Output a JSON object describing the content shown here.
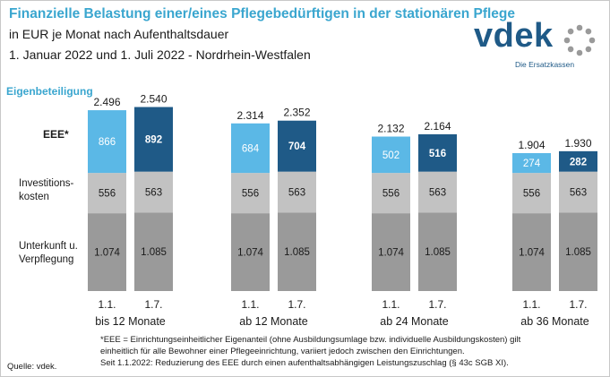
{
  "header": {
    "title": "Finanzielle Belastung einer/eines Pflegebedürftigen in der stationären Pflege",
    "subtitle_1": "in EUR je Monat nach Aufenthaltsdauer",
    "subtitle_2": "1. Januar 2022 und 1. Juli 2022 - Nordrhein-Westfalen"
  },
  "logo": {
    "word": "vdek",
    "tagline": "Die Ersatzkassen"
  },
  "row_labels": {
    "eigenbeteiligung": "Eigenbeteiligung",
    "eee": "EEE*",
    "investition_1": "Investitions-",
    "investition_2": "kosten",
    "unterkunft_1": "Unterkunft u.",
    "unterkunft_2": "Verpflegung"
  },
  "footnote": {
    "line1": "*EEE = Einrichtungseinheitlicher  Eigenanteil (ohne Ausbildungsumlage bzw. individuelle Ausbildungskosten)  gilt",
    "line2": "einheitlich für alle Bewohner einer Pflegeeinrichtung, variiert jedoch zwischen den Einrichtungen.",
    "line3": "Seit 1.1.2022: Reduzierung des EEE durch einen aufenthaltsabhängigen Leistungszuschlag  (§ 43c SGB XI)."
  },
  "source": "Quelle: vdek.",
  "colors": {
    "title": "#3aa6cf",
    "eee_jan": "#5bb8e6",
    "eee_jul": "#1f5a87",
    "investition": "#c2c2c2",
    "unterkunft": "#9a9a9a"
  },
  "chart_data": {
    "type": "bar",
    "stacked": true,
    "groups": [
      "bis 12 Monate",
      "ab 12 Monate",
      "ab 24 Monate",
      "ab 36 Monate"
    ],
    "bar_labels": [
      "1.1.",
      "1.7."
    ],
    "totals": [
      [
        "2.496",
        "2.540"
      ],
      [
        "2.314",
        "2.352"
      ],
      [
        "2.132",
        "2.164"
      ],
      [
        "1.904",
        "1.930"
      ]
    ],
    "series": [
      {
        "name": "Unterkunft u. Verpflegung",
        "values": [
          [
            1074,
            1085
          ],
          [
            1074,
            1085
          ],
          [
            1074,
            1085
          ],
          [
            1074,
            1085
          ]
        ],
        "labels": [
          [
            "1.074",
            "1.085"
          ],
          [
            "1.074",
            "1.085"
          ],
          [
            "1.074",
            "1.085"
          ],
          [
            "1.074",
            "1.085"
          ]
        ]
      },
      {
        "name": "Investitionskosten",
        "values": [
          [
            556,
            563
          ],
          [
            556,
            563
          ],
          [
            556,
            563
          ],
          [
            556,
            563
          ]
        ],
        "labels": [
          [
            "556",
            "563"
          ],
          [
            "556",
            "563"
          ],
          [
            "556",
            "563"
          ],
          [
            "556",
            "563"
          ]
        ]
      },
      {
        "name": "EEE*",
        "values": [
          [
            866,
            892
          ],
          [
            684,
            704
          ],
          [
            502,
            516
          ],
          [
            274,
            282
          ]
        ],
        "labels": [
          [
            "866",
            "892"
          ],
          [
            "684",
            "704"
          ],
          [
            "502",
            "516"
          ],
          [
            "274",
            "282"
          ]
        ]
      }
    ],
    "ylim": [
      0,
      2600
    ],
    "grid": false,
    "legend": "none"
  }
}
